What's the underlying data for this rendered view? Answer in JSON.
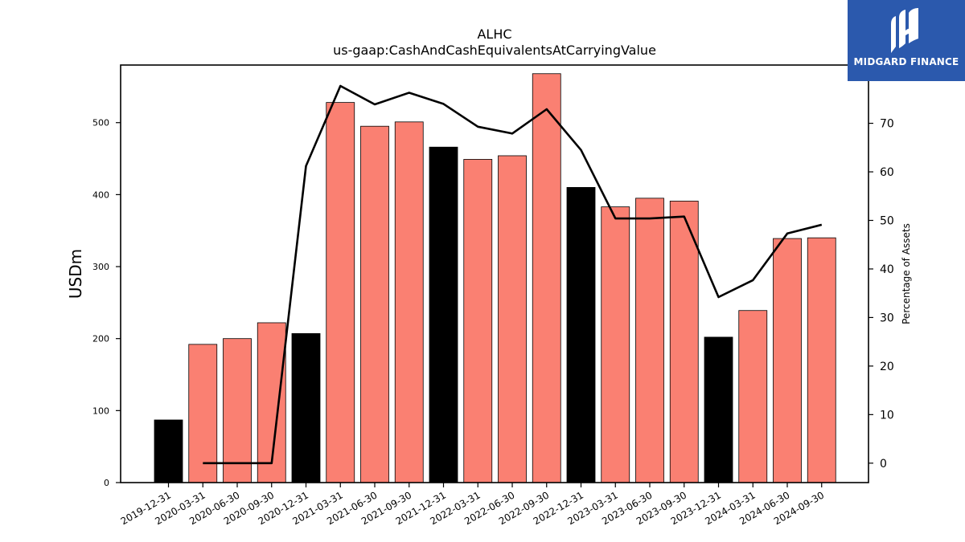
{
  "chart_data": {
    "type": "bar",
    "title": "ALHC",
    "subtitle": "us-gaap:CashAndCashEquivalentsAtCarryingValue",
    "ylabel": "USDm",
    "y2label": "Percentage of Assets",
    "ylim": [
      0,
      580
    ],
    "y2lim": [
      -4,
      82
    ],
    "yticks": [
      0,
      100,
      200,
      300,
      400,
      500
    ],
    "y2ticks": [
      0,
      10,
      20,
      30,
      40,
      50,
      60,
      70
    ],
    "categories": [
      "2019-12-31",
      "2020-03-31",
      "2020-06-30",
      "2020-09-30",
      "2020-12-31",
      "2021-03-31",
      "2021-06-30",
      "2021-09-30",
      "2021-12-31",
      "2022-03-31",
      "2022-06-30",
      "2022-09-30",
      "2022-12-31",
      "2023-03-31",
      "2023-06-30",
      "2023-09-30",
      "2023-12-31",
      "2024-03-31",
      "2024-06-30",
      "2024-09-30"
    ],
    "series": [
      {
        "kind": "bar",
        "values": [
          87,
          192,
          200,
          222,
          207,
          528,
          495,
          501,
          466,
          449,
          454,
          568,
          410,
          383,
          395,
          391,
          202,
          239,
          339,
          340
        ],
        "colors": [
          "#000000",
          "#fa8072",
          "#fa8072",
          "#fa8072",
          "#000000",
          "#fa8072",
          "#fa8072",
          "#fa8072",
          "#000000",
          "#fa8072",
          "#fa8072",
          "#fa8072",
          "#000000",
          "#fa8072",
          "#fa8072",
          "#fa8072",
          "#000000",
          "#fa8072",
          "#fa8072",
          "#fa8072"
        ]
      },
      {
        "kind": "line",
        "axis": "right",
        "color": "#000000",
        "values": [
          null,
          0,
          0,
          0,
          61.2,
          77.7,
          73.9,
          76.3,
          74.0,
          69.3,
          67.9,
          72.9,
          64.5,
          50.4,
          50.4,
          50.8,
          34.2,
          37.7,
          47.3,
          49.1
        ]
      }
    ],
    "colors": {
      "bar_annual": "#000000",
      "bar_quarter": "#fa8072",
      "line": "#000000"
    },
    "grid": false
  },
  "logo": {
    "text": "MIDGARD FINANCE",
    "bg": "#2b59ad"
  }
}
